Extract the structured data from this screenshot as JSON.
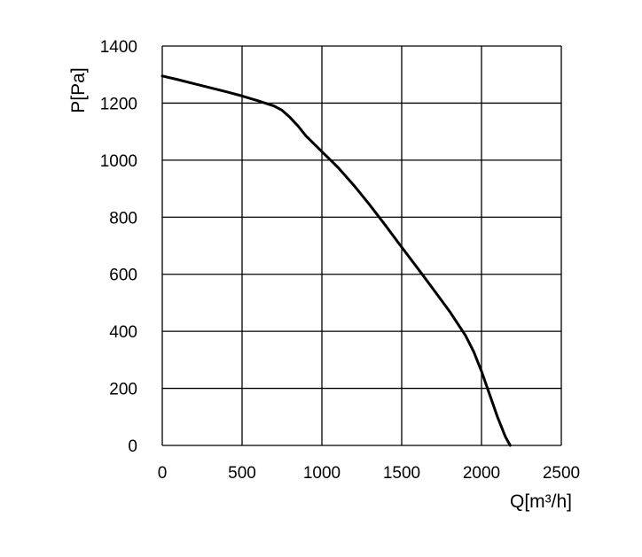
{
  "chart_data": {
    "type": "line",
    "title": "",
    "xlabel": "Q[m³/h]",
    "ylabel": "P[Pa]",
    "xlim": [
      0,
      2500
    ],
    "ylim": [
      0,
      1400
    ],
    "xticks": [
      0,
      500,
      1000,
      1500,
      2000,
      2500
    ],
    "yticks": [
      0,
      200,
      400,
      600,
      800,
      1000,
      1200,
      1400
    ],
    "xtick_labels": [
      "0",
      "500",
      "1000",
      "1500",
      "2000",
      "2500"
    ],
    "ytick_labels": [
      "0",
      "200",
      "400",
      "600",
      "800",
      "1000",
      "1200",
      "1400"
    ],
    "grid": true,
    "legend": "none",
    "series": [
      {
        "x": [
          0,
          100,
          200,
          300,
          400,
          500,
          600,
          700,
          750,
          800,
          850,
          900,
          1000,
          1100,
          1200,
          1300,
          1400,
          1500,
          1600,
          1700,
          1800,
          1900,
          1950,
          2000,
          2050,
          2100,
          2150,
          2180
        ],
        "y": [
          1295,
          1282,
          1268,
          1254,
          1240,
          1225,
          1208,
          1190,
          1175,
          1150,
          1120,
          1085,
          1030,
          975,
          912,
          843,
          770,
          695,
          621,
          546,
          470,
          385,
          330,
          260,
          180,
          100,
          30,
          0
        ]
      }
    ],
    "colors": {
      "line": "#000000",
      "grid": "#000000",
      "background": "#ffffff"
    }
  }
}
